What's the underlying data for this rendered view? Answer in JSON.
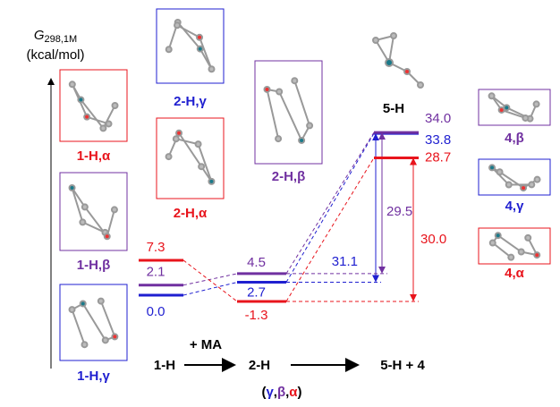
{
  "axis": {
    "symbol": "G",
    "subscript": "298,1M",
    "unit": "(kcal/mol)"
  },
  "transition_label": "5-H",
  "steps": [
    "1-H",
    "+ MA",
    "2-H",
    "5-H + 4"
  ],
  "note": [
    "(",
    "γ",
    ",",
    "β",
    ",",
    "α",
    ")"
  ],
  "molecules": [
    {
      "label": "1-H,α",
      "color": "#e8141c"
    },
    {
      "label": "1-H,β",
      "color": "#7030a0"
    },
    {
      "label": "1-H,γ",
      "color": "#1f1fd0"
    },
    {
      "label": "2-H,γ",
      "color": "#1f1fd0"
    },
    {
      "label": "2-H,α",
      "color": "#e8141c"
    },
    {
      "label": "2-H,β",
      "color": "#7030a0"
    },
    {
      "label": "4,β",
      "color": "#7030a0"
    },
    {
      "label": "4,γ",
      "color": "#1f1fd0"
    },
    {
      "label": "4,α",
      "color": "#e8141c"
    }
  ],
  "levels": [
    {
      "name": "γ",
      "color": "#1f1fd0",
      "values": [
        0.0,
        2.7,
        33.8
      ],
      "value_labels": [
        "0.0",
        "2.7",
        "33.8"
      ],
      "barrier": 31.1
    },
    {
      "name": "β",
      "color": "#7030a0",
      "values": [
        2.1,
        4.5,
        34.0
      ],
      "value_labels": [
        "2.1",
        "4.5",
        "34.0"
      ],
      "barrier": 29.5
    },
    {
      "name": "α",
      "color": "#e8141c",
      "values": [
        7.3,
        -1.3,
        28.7
      ],
      "value_labels": [
        "7.3",
        "-1.3",
        "28.7"
      ],
      "barrier": {
        "value": 30.0,
        "label": "30.0"
      }
    }
  ]
}
